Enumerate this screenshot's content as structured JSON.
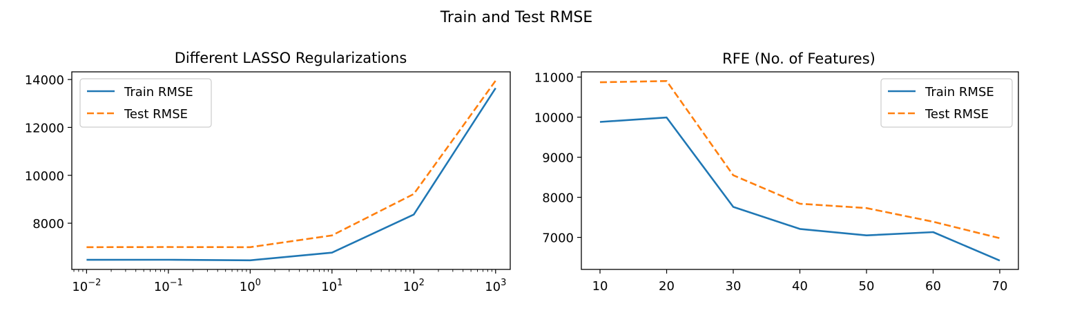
{
  "figure_title": "Train and Test RMSE",
  "chart_data": [
    {
      "type": "line",
      "title": "Different LASSO Regularizations",
      "xlabel": "",
      "ylabel": "",
      "xscale": "log",
      "x": [
        0.01,
        0.1,
        1,
        10,
        100,
        1000
      ],
      "x_ticks": [
        0.01,
        0.1,
        1,
        10,
        100,
        1000
      ],
      "x_tick_labels": [
        {
          "base": "10",
          "exp": "−2"
        },
        {
          "base": "10",
          "exp": "−1"
        },
        {
          "base": "10",
          "exp": "0"
        },
        {
          "base": "10",
          "exp": "1"
        },
        {
          "base": "10",
          "exp": "2"
        },
        {
          "base": "10",
          "exp": "3"
        }
      ],
      "y_ticks": [
        8000,
        10000,
        12000,
        14000
      ],
      "y_tick_labels": [
        "8000",
        "10000",
        "12000",
        "14000"
      ],
      "xlim": [
        0.0066,
        1510
      ],
      "ylim": [
        6070,
        14320
      ],
      "grid": false,
      "legend_position": "upper-left",
      "series": [
        {
          "name": "Train RMSE",
          "values": [
            6470,
            6475,
            6450,
            6770,
            8360,
            13640
          ],
          "color": "#1f77b4",
          "style": "solid"
        },
        {
          "name": "Test RMSE",
          "values": [
            7000,
            7005,
            7000,
            7490,
            9220,
            13950
          ],
          "color": "#ff7f0e",
          "style": "dashed"
        }
      ]
    },
    {
      "type": "line",
      "title": "RFE (No. of Features)",
      "xlabel": "",
      "ylabel": "",
      "xscale": "linear",
      "x": [
        10,
        20,
        30,
        40,
        50,
        60,
        70
      ],
      "x_ticks": [
        10,
        20,
        30,
        40,
        50,
        60,
        70
      ],
      "x_tick_labels": [
        "10",
        "20",
        "30",
        "40",
        "50",
        "60",
        "70"
      ],
      "y_ticks": [
        7000,
        8000,
        9000,
        10000,
        11000
      ],
      "y_tick_labels": [
        "7000",
        "8000",
        "9000",
        "10000",
        "11000"
      ],
      "xlim": [
        7.2,
        72.8
      ],
      "ylim": [
        6200,
        11130
      ],
      "grid": false,
      "legend_position": "upper-right",
      "series": [
        {
          "name": "Train RMSE",
          "values": [
            9880,
            9990,
            7760,
            7210,
            7050,
            7130,
            6420
          ],
          "color": "#1f77b4",
          "style": "solid"
        },
        {
          "name": "Test RMSE",
          "values": [
            10870,
            10900,
            8550,
            7840,
            7730,
            7390,
            6980
          ],
          "color": "#ff7f0e",
          "style": "dashed"
        }
      ]
    }
  ]
}
